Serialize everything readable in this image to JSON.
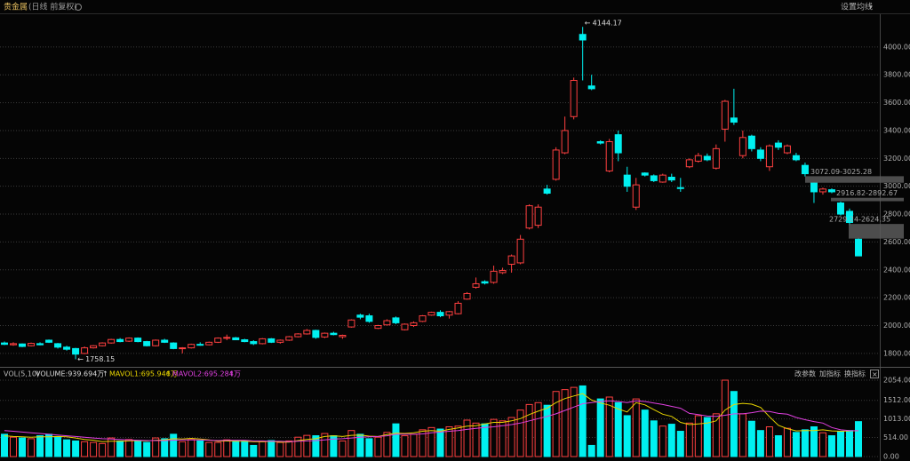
{
  "chart_data": {
    "type": "candlestick",
    "title": "贵金属",
    "subtitle": "(日线 前复权)",
    "settings": "设置均线",
    "up_color": "#ff4040",
    "down_color": "#00f0f0",
    "open": [
      1875,
      1862,
      1868,
      1855,
      1870,
      1895,
      1870,
      1845,
      1835,
      1800,
      1840,
      1855,
      1875,
      1900,
      1888,
      1910,
      1885,
      1855,
      1895,
      1875,
      1835,
      1840,
      1865,
      1862,
      1880,
      1910,
      1912,
      1898,
      1885,
      1870,
      1905,
      1880,
      1895,
      1920,
      1940,
      1965,
      1918,
      1945,
      1920,
      1990,
      2075,
      2070,
      1980,
      2005,
      2055,
      1970,
      2000,
      2030,
      2075,
      2095,
      2075,
      2085,
      2190,
      2275,
      2315,
      2310,
      2380,
      2440,
      2450,
      2700,
      2720,
      2980,
      3050,
      3240,
      3500,
      4090,
      3720,
      3320,
      3110,
      3370,
      3080,
      2850,
      3095,
      3075,
      3030,
      3065,
      2990,
      3140,
      3180,
      3215,
      3130,
      3410,
      3490,
      3220,
      3360,
      3260,
      3140,
      3310,
      3240,
      3220,
      3150,
      3025,
      2960,
      2975,
      2880,
      2820,
      2620
    ],
    "high": [
      1885,
      1880,
      1872,
      1878,
      1880,
      1900,
      1875,
      1855,
      1840,
      1850,
      1860,
      1880,
      1905,
      1910,
      1915,
      1915,
      1890,
      1900,
      1905,
      1880,
      1845,
      1870,
      1880,
      1885,
      1915,
      1935,
      1918,
      1905,
      1895,
      1910,
      1910,
      1900,
      1925,
      1945,
      1975,
      1970,
      1950,
      1955,
      1935,
      2045,
      2085,
      2085,
      2005,
      2045,
      2065,
      2015,
      2030,
      2075,
      2100,
      2110,
      2105,
      2175,
      2240,
      2345,
      2325,
      2430,
      2415,
      2510,
      2650,
      2870,
      2870,
      3010,
      3280,
      3500,
      3780,
      4144.17,
      3800,
      3330,
      3340,
      3400,
      3140,
      3060,
      3100,
      3085,
      3090,
      3090,
      3060,
      3200,
      3240,
      3235,
      3300,
      3620,
      3700,
      3400,
      3370,
      3280,
      3300,
      3330,
      3300,
      3240,
      3170,
      3030,
      2990,
      2985,
      2890,
      2840,
      2630
    ],
    "low": [
      1860,
      1855,
      1845,
      1850,
      1858,
      1875,
      1835,
      1820,
      1758.15,
      1795,
      1835,
      1850,
      1870,
      1880,
      1882,
      1880,
      1850,
      1850,
      1875,
      1830,
      1800,
      1835,
      1855,
      1858,
      1875,
      1895,
      1895,
      1880,
      1860,
      1865,
      1875,
      1870,
      1890,
      1915,
      1935,
      1905,
      1910,
      1930,
      1905,
      1985,
      2045,
      2020,
      1975,
      2000,
      2010,
      1965,
      1990,
      2025,
      2070,
      2060,
      2050,
      2080,
      2185,
      2265,
      2295,
      2300,
      2370,
      2380,
      2440,
      2690,
      2700,
      2940,
      3040,
      3230,
      3480,
      3760,
      3690,
      3300,
      3100,
      3180,
      2960,
      2830,
      3070,
      3030,
      3025,
      3030,
      2960,
      3130,
      3170,
      3180,
      3120,
      3320,
      3440,
      3200,
      3250,
      3180,
      3110,
      3260,
      3230,
      3180,
      3070,
      2880,
      2940,
      2950,
      2790,
      2720,
      2500
    ],
    "close": [
      1865,
      1870,
      1850,
      1872,
      1862,
      1880,
      1845,
      1830,
      1795,
      1840,
      1855,
      1875,
      1900,
      1885,
      1910,
      1885,
      1855,
      1895,
      1880,
      1835,
      1840,
      1865,
      1860,
      1880,
      1910,
      1915,
      1898,
      1885,
      1870,
      1905,
      1880,
      1895,
      1920,
      1940,
      1965,
      1915,
      1945,
      1935,
      1930,
      2040,
      2060,
      2030,
      2000,
      2035,
      2020,
      2010,
      2020,
      2070,
      2095,
      2070,
      2100,
      2160,
      2230,
      2300,
      2305,
      2390,
      2395,
      2500,
      2620,
      2860,
      2850,
      2950,
      3260,
      3400,
      3760,
      4050,
      3700,
      3310,
      3320,
      3240,
      3000,
      3010,
      3080,
      3040,
      3080,
      3045,
      2985,
      3190,
      3220,
      3190,
      3270,
      3610,
      3460,
      3350,
      3270,
      3200,
      3290,
      3280,
      3290,
      3190,
      3090,
      2960,
      2980,
      2960,
      2800,
      2740,
      2500
    ],
    "ylim": [
      1710,
      4235
    ],
    "yticks": [
      {
        "value": 1800,
        "label": "1800.00"
      },
      {
        "value": 2000,
        "label": "2000.00"
      },
      {
        "value": 2200,
        "label": "2200.00"
      },
      {
        "value": 2400,
        "label": "2400.00"
      },
      {
        "value": 2600,
        "label": "2600.00"
      },
      {
        "value": 2800,
        "label": "2800.00"
      },
      {
        "value": 3000,
        "label": "3000.00"
      },
      {
        "value": 3200,
        "label": "3200.00"
      },
      {
        "value": 3400,
        "label": "3400.00"
      },
      {
        "value": 3600,
        "label": "3600.00"
      },
      {
        "value": 3800,
        "label": "3800.00"
      },
      {
        "value": 4000,
        "label": "4000.00"
      }
    ],
    "max_label": "4144.17",
    "min_label": "1758.15",
    "gaps": [
      {
        "label": "3072.09-3025.28",
        "top": 3072.09,
        "bottom": 3025.28
      },
      {
        "label": "2916.82-2892.67",
        "top": 2916.82,
        "bottom": 2892.67
      },
      {
        "label": "2729.24-2624.35",
        "top": 2729.24,
        "bottom": 2624.35
      }
    ],
    "volume": {
      "title": "VOL(5,10)",
      "legend": [
        "VOLUME:939.694万",
        "MAVOL1:695.946万",
        "MAVOL2:695.284万"
      ],
      "buttons": [
        "改参数",
        "加指标",
        "换指标"
      ],
      "values": [
        600,
        520,
        500,
        480,
        560,
        600,
        540,
        450,
        420,
        400,
        380,
        350,
        500,
        420,
        460,
        430,
        380,
        500,
        480,
        600,
        400,
        460,
        420,
        380,
        380,
        450,
        430,
        420,
        300,
        400,
        430,
        380,
        420,
        520,
        570,
        560,
        620,
        560,
        420,
        700,
        600,
        480,
        520,
        650,
        880,
        560,
        600,
        720,
        780,
        740,
        800,
        820,
        980,
        900,
        880,
        1000,
        960,
        1050,
        1250,
        1400,
        1450,
        1380,
        1750,
        1800,
        1860,
        1900,
        300,
        1550,
        1600,
        1450,
        1100,
        1550,
        1250,
        960,
        820,
        870,
        680,
        900,
        1100,
        1050,
        1150,
        2054,
        1750,
        1150,
        950,
        700,
        800,
        560,
        760,
        650,
        720,
        800,
        640,
        560,
        680,
        700,
        939.694
      ],
      "series": [
        {
          "name": "MAVOL1",
          "color": "#e8d400",
          "values": [
            560,
            540,
            530,
            520,
            530,
            530,
            540,
            530,
            500,
            460,
            440,
            400,
            410,
            410,
            420,
            430,
            420,
            440,
            450,
            480,
            470,
            490,
            470,
            450,
            410,
            420,
            410,
            410,
            400,
            400,
            410,
            390,
            390,
            430,
            460,
            480,
            540,
            560,
            540,
            570,
            580,
            550,
            540,
            590,
            630,
            620,
            640,
            680,
            700,
            680,
            730,
            770,
            820,
            830,
            880,
            920,
            920,
            960,
            1020,
            1130,
            1220,
            1300,
            1450,
            1560,
            1630,
            1690,
            1520,
            1440,
            1380,
            1280,
            1200,
            1450,
            1390,
            1260,
            1140,
            1080,
            920,
            860,
            880,
            900,
            960,
            1250,
            1400,
            1430,
            1410,
            1320,
            1070,
            840,
            750,
            690,
            700,
            700,
            720,
            690,
            680,
            690,
            695.946
          ]
        },
        {
          "name": "MAVOL2",
          "color": "#e040e0",
          "values": [
            700,
            680,
            660,
            640,
            620,
            600,
            580,
            560,
            540,
            520,
            500,
            480,
            470,
            460,
            450,
            440,
            430,
            430,
            430,
            440,
            450,
            450,
            450,
            440,
            430,
            440,
            440,
            440,
            420,
            420,
            410,
            410,
            400,
            410,
            420,
            430,
            450,
            470,
            480,
            500,
            520,
            530,
            540,
            560,
            600,
            600,
            600,
            610,
            640,
            660,
            680,
            700,
            730,
            760,
            780,
            800,
            830,
            860,
            900,
            960,
            1020,
            1080,
            1150,
            1240,
            1330,
            1420,
            1450,
            1480,
            1500,
            1480,
            1450,
            1500,
            1480,
            1440,
            1400,
            1350,
            1300,
            1160,
            1130,
            1090,
            1080,
            1110,
            1150,
            1150,
            1180,
            1220,
            1210,
            1160,
            1140,
            1050,
            990,
            940,
            900,
            780,
            720,
            700,
            695.284
          ]
        }
      ],
      "ylim": [
        0,
        2054
      ],
      "yticks": [
        {
          "value": 0,
          "label": "0.00"
        },
        {
          "value": 514,
          "label": "514.00"
        },
        {
          "value": 1013,
          "label": "1013.00"
        },
        {
          "value": 1512,
          "label": "1512.00"
        },
        {
          "value": 2054,
          "label": "2054.00"
        }
      ]
    }
  }
}
